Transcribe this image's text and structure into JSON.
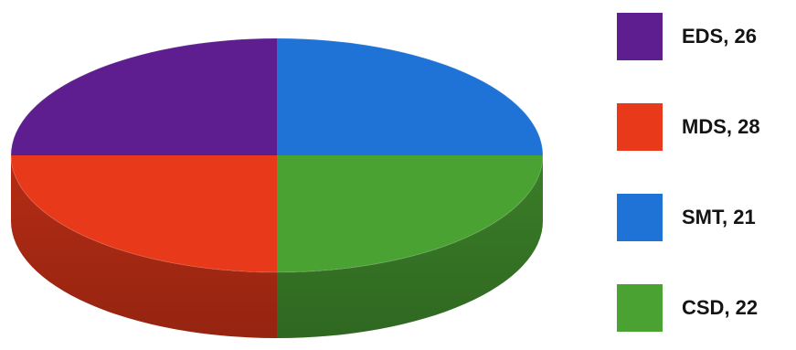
{
  "chart_data": {
    "type": "pie",
    "style": "3d",
    "title": "",
    "categories": [
      "EDS",
      "MDS",
      "SMT",
      "CSD"
    ],
    "values": [
      26,
      28,
      21,
      22
    ],
    "colors": [
      "#5e1e8f",
      "#e8391a",
      "#1f73d6",
      "#4aa233"
    ],
    "legend": {
      "placement": "right",
      "entries": [
        {
          "label": "EDS, 26",
          "color": "#5e1e8f"
        },
        {
          "label": "MDS, 28",
          "color": "#e8391a"
        },
        {
          "label": "SMT, 21",
          "color": "#1f73d6"
        },
        {
          "label": "CSD, 22",
          "color": "#4aa233"
        }
      ]
    }
  }
}
